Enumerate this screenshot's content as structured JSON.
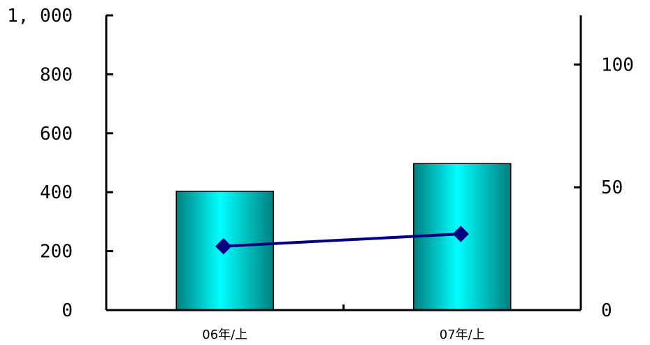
{
  "chart_data": {
    "type": "bar",
    "categories": [
      "06年/上",
      "07年/上"
    ],
    "series": [
      {
        "type": "bar",
        "axis": "left",
        "values": [
          403,
          497
        ]
      },
      {
        "type": "line",
        "axis": "right",
        "values": [
          26,
          31
        ]
      }
    ],
    "title": "",
    "xlabel": "",
    "ylabel": "",
    "y_left": {
      "range": [
        0,
        1000
      ],
      "ticks": [
        0,
        200,
        400,
        600,
        800,
        1000
      ],
      "tick_labels": [
        "0",
        "200",
        "400",
        "600",
        "800",
        "1, 000"
      ]
    },
    "y_right": {
      "range": [
        0,
        120
      ],
      "ticks": [
        0,
        50,
        100
      ],
      "tick_labels": [
        "0",
        "50",
        "100"
      ]
    },
    "grid": false,
    "legend": "none",
    "colors": {
      "bar_light": "#00ffff",
      "bar_dark": "#007f7f",
      "line": "#000080",
      "axis": "#000000"
    }
  }
}
